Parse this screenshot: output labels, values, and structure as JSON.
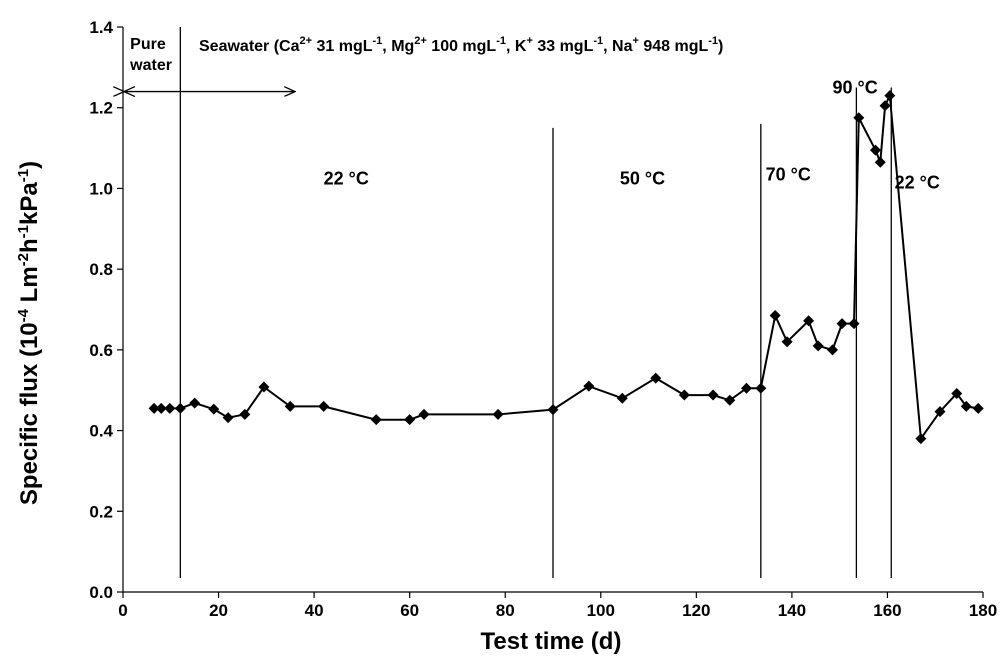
{
  "chart_data": {
    "type": "scatter",
    "title": "",
    "xlabel": "Test time (d)",
    "ylabel_parts": [
      "Specific flux (10",
      "-4",
      " Lm",
      "-2",
      "h",
      "-1",
      "kPa",
      "-1",
      ")"
    ],
    "xlim": [
      0,
      180
    ],
    "ylim": [
      0,
      1.4
    ],
    "x_ticks": [
      0,
      20,
      40,
      60,
      80,
      100,
      120,
      140,
      160,
      180
    ],
    "x_tick_labels": [
      "0",
      "20",
      "40",
      "60",
      "80",
      "100",
      "120",
      "140",
      "160",
      "180"
    ],
    "y_ticks": [
      0,
      0.2,
      0.4,
      0.6,
      0.8,
      1.0,
      1.2,
      1.4
    ],
    "y_tick_labels": [
      "0.0",
      "0.2",
      "0.4",
      "0.6",
      "0.8",
      "1.0",
      "1.2",
      "1.4"
    ],
    "grid": false,
    "marker": "diamond",
    "line_color": "#000000",
    "series": [
      {
        "x": [
          6.5,
          8,
          9.8,
          12,
          15,
          19,
          22,
          25.5,
          29.5,
          35,
          42,
          53,
          60,
          63,
          78.5,
          90,
          97.5,
          104.5,
          111.5,
          117.5,
          123.5,
          127,
          130.5,
          133.5,
          136.5,
          139,
          143.5,
          145.5,
          148.5,
          150.5,
          153,
          154,
          157.5,
          158.5,
          159.5,
          160.5,
          167,
          171,
          174.5,
          176.5,
          179
        ],
        "y": [
          0.455,
          0.455,
          0.455,
          0.455,
          0.468,
          0.453,
          0.432,
          0.44,
          0.508,
          0.46,
          0.46,
          0.427,
          0.427,
          0.44,
          0.44,
          0.452,
          0.51,
          0.48,
          0.53,
          0.488,
          0.488,
          0.475,
          0.505,
          0.505,
          0.685,
          0.62,
          0.672,
          0.61,
          0.6,
          0.665,
          0.665,
          1.175,
          1.095,
          1.065,
          1.205,
          1.23,
          0.38,
          0.447,
          0.492,
          0.46,
          0.455
        ]
      }
    ],
    "phase_lines": [
      {
        "x": 12,
        "y_top": 1.4
      },
      {
        "x": 90,
        "y_top": 1.15
      },
      {
        "x": 133.5,
        "y_top": 1.16
      },
      {
        "x": 153.5,
        "y_top": 1.25
      },
      {
        "x": 160.8,
        "y_top": 1.25
      }
    ],
    "annotations": {
      "pure_water": [
        "Pure",
        "water"
      ],
      "seawater_parts": [
        {
          "t": "Seawater (Ca",
          "s": false
        },
        {
          "t": "2+",
          "s": true
        },
        {
          "t": " 31 mgL",
          "s": false
        },
        {
          "t": "-1",
          "s": true
        },
        {
          "t": ", Mg",
          "s": false
        },
        {
          "t": "2+",
          "s": true
        },
        {
          "t": " 100 mgL",
          "s": false
        },
        {
          "t": "-1",
          "s": true
        },
        {
          "t": ", K",
          "s": false
        },
        {
          "t": "+",
          "s": true
        },
        {
          "t": " 33 mgL",
          "s": false
        },
        {
          "t": "-1",
          "s": true
        },
        {
          "t": ", Na",
          "s": false
        },
        {
          "t": "+",
          "s": true
        },
        {
          "t": " 948 mgL",
          "s": false
        },
        {
          "t": "-1",
          "s": true
        },
        {
          "t": ")",
          "s": false
        }
      ],
      "temperatures": [
        {
          "label": "22 °C",
          "x": 42,
          "y": 1.01
        },
        {
          "label": "50 °C",
          "x": 104,
          "y": 1.01
        },
        {
          "label": "70 °C",
          "x": 134.5,
          "y": 1.02
        },
        {
          "label": "90 °C",
          "x": 148.5,
          "y": 1.235
        },
        {
          "label": "22 °C",
          "x": 161.5,
          "y": 1.0
        }
      ],
      "arrow": {
        "x_from": 0,
        "x_to": 36,
        "y": 1.24
      }
    }
  }
}
